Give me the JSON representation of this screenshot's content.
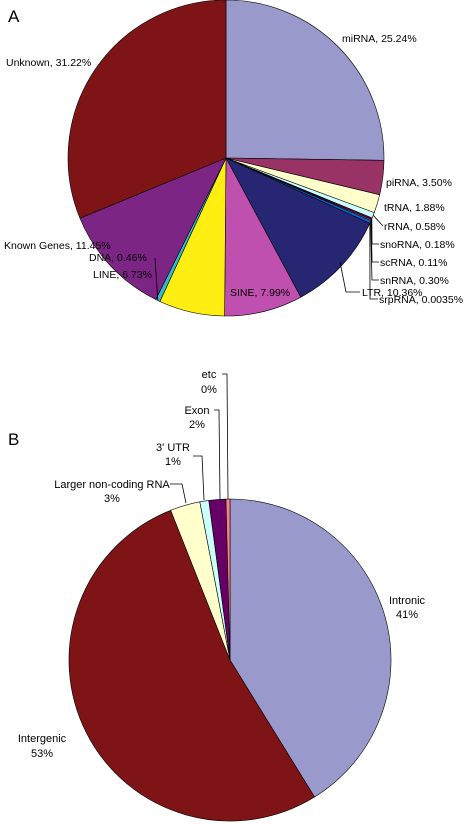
{
  "chart_data": [
    {
      "panel": "A",
      "type": "pie",
      "slices": [
        {
          "label": "miRNA, 25.24%",
          "value": 25.24,
          "color": "#9999cc"
        },
        {
          "label": "piRNA, 3.50%",
          "value": 3.5,
          "color": "#993366"
        },
        {
          "label": "tRNA, 1.88%",
          "value": 1.88,
          "color": "#ffffcc"
        },
        {
          "label": "rRNA, 0.58%",
          "value": 0.58,
          "color": "#ccffff"
        },
        {
          "label": "snoRNA, 0.18%",
          "value": 0.18,
          "color": "#660066"
        },
        {
          "label": "scRNA, 0.11%",
          "value": 0.11,
          "color": "#ff8080"
        },
        {
          "label": "snRNA, 0.30%",
          "value": 0.3,
          "color": "#0066cc"
        },
        {
          "label": "srpRNA, 0.0035%",
          "value": 0.0035,
          "color": "#ccccff"
        },
        {
          "label": "LTR, 10.36%",
          "value": 10.36,
          "color": "#262673"
        },
        {
          "label": "SINE, 7.99%",
          "value": 7.99,
          "color": "#c050b0"
        },
        {
          "label": "LINE, 6.73%",
          "value": 6.73,
          "color": "#ffee11"
        },
        {
          "label": "DNA, 0.46%",
          "value": 0.46,
          "color": "#33bbcc"
        },
        {
          "label": "Known Genes, 11.45%",
          "value": 11.45,
          "color": "#7d2585"
        },
        {
          "label": "Unknown, 31.22%",
          "value": 31.22,
          "color": "#7f1417"
        }
      ]
    },
    {
      "panel": "B",
      "type": "pie",
      "slices": [
        {
          "label": "Intronic",
          "pct": "41%",
          "value": 41.2,
          "color": "#9999cc"
        },
        {
          "label": "Intergenic",
          "pct": "53%",
          "value": 52.8,
          "color": "#7f1417"
        },
        {
          "label": "Larger non-coding RNA",
          "pct": "3%",
          "value": 3.0,
          "color": "#ffffcc"
        },
        {
          "label": "3' UTR",
          "pct": "1%",
          "value": 0.9,
          "color": "#ccffff"
        },
        {
          "label": "Exon",
          "pct": "2%",
          "value": 1.7,
          "color": "#660066"
        },
        {
          "label": "etc",
          "pct": "0%",
          "value": 0.4,
          "color": "#ff8080"
        }
      ]
    }
  ]
}
